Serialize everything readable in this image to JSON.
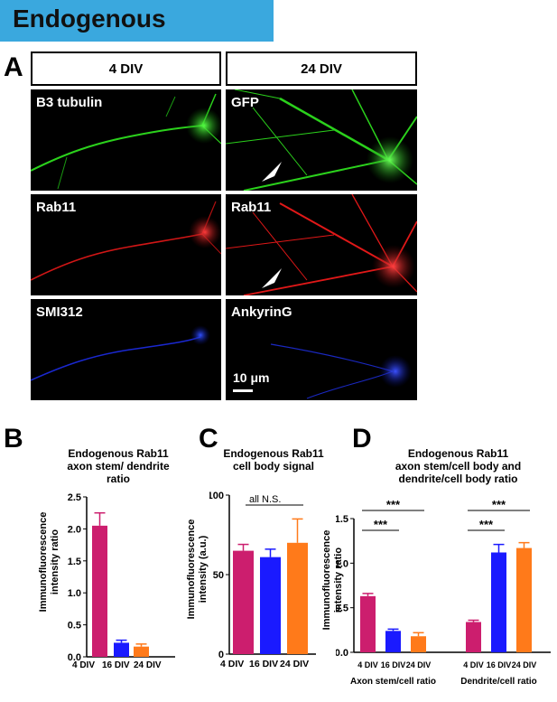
{
  "header": {
    "title": "Endogenous"
  },
  "panel_a": {
    "label": "A",
    "col_headers": [
      "4 DIV",
      "24 DIV"
    ],
    "rows": [
      {
        "left": "B3 tubulin",
        "right": "GFP",
        "color": "#2bd11c"
      },
      {
        "left": "Rab11",
        "right": "Rab11",
        "color": "#ff1a1a"
      },
      {
        "left": "SMI312",
        "right": "AnkyrinG",
        "color": "#2236ff"
      }
    ],
    "scale_bar": "10 μm",
    "arrow_icon": "arrowhead-icon"
  },
  "panel_b": {
    "label": "B",
    "title_lines": [
      "Endogenous Rab11",
      "axon stem/ dendrite",
      "ratio"
    ],
    "ylabel_lines": [
      "Immunofluorescence",
      "intensity ratio"
    ]
  },
  "panel_c": {
    "label": "C",
    "title_lines": [
      "Endogenous Rab11",
      "cell body signal"
    ],
    "ylabel_lines": [
      "Immunofluorescence",
      "intensity (a.u.)"
    ],
    "annotation": "all N.S."
  },
  "panel_d": {
    "label": "D",
    "title_lines": [
      "Endogenous Rab11",
      "axon stem/cell body and",
      "dendrite/cell body ratio"
    ],
    "ylabel_lines": [
      "Immunofluorescence",
      "intensity ratio"
    ],
    "group_labels": [
      "Axon stem/cell ratio",
      "Dendrite/cell ratio"
    ],
    "significance": "***"
  },
  "colors": {
    "4 DIV": "#cc1e6e",
    "16 DIV": "#1a1aff",
    "24 DIV": "#ff7a1a"
  },
  "chart_data": [
    {
      "type": "bar",
      "title": "Endogenous Rab11 axon stem/ dendrite ratio",
      "ylabel": "Immunofluorescence intensity ratio",
      "categories": [
        "4 DIV",
        "16 DIV",
        "24 DIV"
      ],
      "values": [
        2.05,
        0.22,
        0.16
      ],
      "errors": [
        0.2,
        0.04,
        0.04
      ],
      "ylim": [
        0,
        2.5
      ],
      "yticks": [
        "0.0",
        "0.5",
        "1.0",
        "1.5",
        "2.0",
        "2.5"
      ]
    },
    {
      "type": "bar",
      "title": "Endogenous Rab11 cell body signal",
      "ylabel": "Immunofluorescence intensity (a.u.)",
      "categories": [
        "4 DIV",
        "16 DIV",
        "24 DIV"
      ],
      "values": [
        65,
        61,
        70
      ],
      "errors": [
        4,
        5,
        15
      ],
      "ylim": [
        0,
        100
      ],
      "yticks": [
        "0",
        "50",
        "100"
      ],
      "annotation": "all N.S."
    },
    {
      "type": "bar",
      "title": "Endogenous Rab11 axon stem/cell body and dendrite/cell body ratio",
      "ylabel": "Immunofluorescence intensity ratio",
      "groups": [
        "Axon stem/cell ratio",
        "Dendrite/cell ratio"
      ],
      "categories": [
        "4 DIV",
        "16 DIV",
        "24 DIV"
      ],
      "series": [
        {
          "values": [
            0.63,
            0.24,
            0.18
          ],
          "errors": [
            0.03,
            0.02,
            0.04
          ]
        },
        {
          "values": [
            0.34,
            1.12,
            1.17
          ],
          "errors": [
            0.02,
            0.09,
            0.06
          ]
        }
      ],
      "ylim": [
        0,
        1.5
      ],
      "yticks": [
        "0.0",
        "0.5",
        "1.0",
        "1.5"
      ],
      "significance": [
        {
          "group": 0,
          "from": "4 DIV",
          "to": "16 DIV",
          "label": "***"
        },
        {
          "group": 0,
          "from": "4 DIV",
          "to": "24 DIV",
          "label": "***"
        },
        {
          "group": 1,
          "from": "4 DIV",
          "to": "16 DIV",
          "label": "***"
        },
        {
          "group": 1,
          "from": "4 DIV",
          "to": "24 DIV",
          "label": "***"
        }
      ]
    }
  ]
}
